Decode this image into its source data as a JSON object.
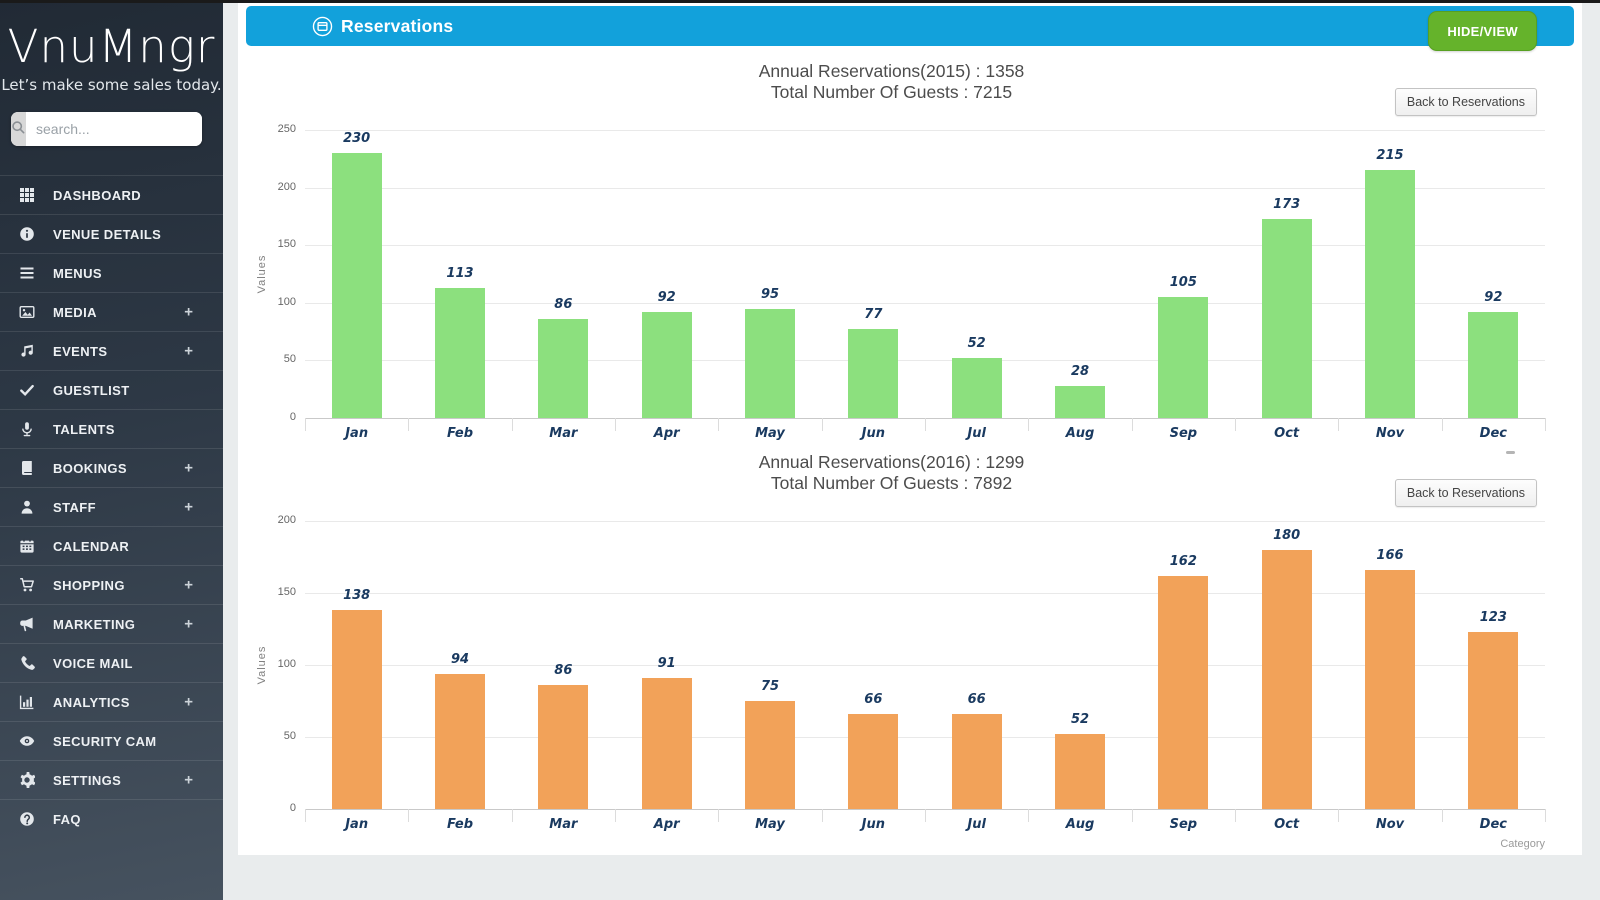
{
  "app": {
    "logo": "VnuMngr",
    "tagline": "Let’s make some sales today.",
    "search_placeholder": "search..."
  },
  "sidebar": {
    "expand_glyph": "+",
    "items": [
      {
        "label": "DASHBOARD",
        "icon": "dashboard-icon",
        "expandable": false
      },
      {
        "label": "VENUE DETAILS",
        "icon": "venue-details-icon",
        "expandable": false
      },
      {
        "label": "MENUS",
        "icon": "menus-icon",
        "expandable": false
      },
      {
        "label": "MEDIA",
        "icon": "media-icon",
        "expandable": true
      },
      {
        "label": "EVENTS",
        "icon": "events-icon",
        "expandable": true
      },
      {
        "label": "GUESTLIST",
        "icon": "guestlist-icon",
        "expandable": false
      },
      {
        "label": "TALENTS",
        "icon": "talents-icon",
        "expandable": false
      },
      {
        "label": "BOOKINGS",
        "icon": "bookings-icon",
        "expandable": true
      },
      {
        "label": "STAFF",
        "icon": "staff-icon",
        "expandable": true
      },
      {
        "label": "CALENDAR",
        "icon": "calendar-icon",
        "expandable": false
      },
      {
        "label": "SHOPPING",
        "icon": "shopping-icon",
        "expandable": true
      },
      {
        "label": "MARKETING",
        "icon": "marketing-icon",
        "expandable": true
      },
      {
        "label": "VOICE MAIL",
        "icon": "voice-mail-icon",
        "expandable": false
      },
      {
        "label": "ANALYTICS",
        "icon": "analytics-icon",
        "expandable": true
      },
      {
        "label": "SECURITY CAM",
        "icon": "security-cam-icon",
        "expandable": false
      },
      {
        "label": "SETTINGS",
        "icon": "settings-icon",
        "expandable": true
      },
      {
        "label": "FAQ",
        "icon": "faq-icon",
        "expandable": false
      }
    ]
  },
  "header": {
    "icon": "reservations-icon",
    "title": "Reservations",
    "hide_view_label": "HIDE/VIEW"
  },
  "colors": {
    "header_bar": "#12a1db",
    "hide_view_button": "#65b32b",
    "bar_2015": "#8ce07e",
    "bar_2016": "#f2a259",
    "data_label_ink": "#1a3a60"
  },
  "chart_data": [
    {
      "type": "bar",
      "title": "Annual Reservations(2015) : 1358",
      "subtitle": "Total Number Of Guests : 7215",
      "back_button_label": "Back to Reservations",
      "categories": [
        "Jan",
        "Feb",
        "Mar",
        "Apr",
        "May",
        "Jun",
        "Jul",
        "Aug",
        "Sep",
        "Oct",
        "Nov",
        "Dec"
      ],
      "values": [
        230,
        113,
        86,
        92,
        95,
        77,
        52,
        28,
        105,
        173,
        215,
        92
      ],
      "ylabel": "Values",
      "xlabel": "Category",
      "ylim": [
        0,
        250
      ],
      "ytick_step": 50,
      "grid": true,
      "legend": "none",
      "bar_color": "#8ce07e"
    },
    {
      "type": "bar",
      "title": "Annual Reservations(2016) : 1299",
      "subtitle": "Total Number Of Guests : 7892",
      "back_button_label": "Back to Reservations",
      "categories": [
        "Jan",
        "Feb",
        "Mar",
        "Apr",
        "May",
        "Jun",
        "Jul",
        "Aug",
        "Sep",
        "Oct",
        "Nov",
        "Dec"
      ],
      "values": [
        138,
        94,
        86,
        91,
        75,
        66,
        66,
        52,
        162,
        180,
        166,
        123
      ],
      "ylabel": "Values",
      "xlabel": "Category",
      "ylim": [
        0,
        200
      ],
      "ytick_step": 50,
      "grid": true,
      "legend": "none",
      "bar_color": "#f2a259"
    }
  ]
}
